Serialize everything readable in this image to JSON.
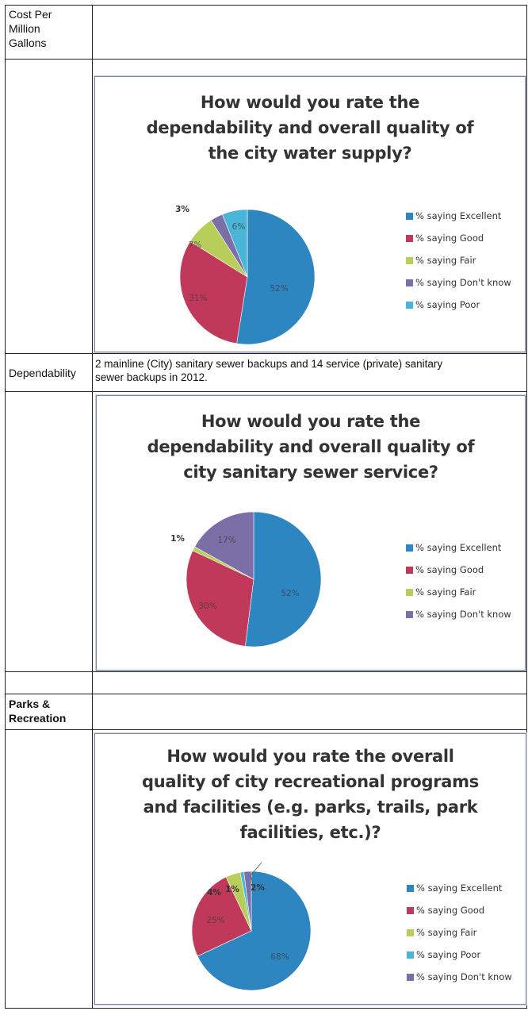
{
  "rows": {
    "cost_label": "Cost Per\nMillion\nGallons",
    "dependability_label": "Dependability",
    "dependability_text": "2 mainline (City) sanitary sewer backups and 14 service (private) sanitary sewer backups in 2012.",
    "parks_label": "Parks &\nRecreation"
  },
  "colors": {
    "Excellent": "#2e86c1",
    "Good": "#c0395b",
    "Fair": "#b7cf5a",
    "Dont_know": "#7c6fa8",
    "Poor": "#4ab5d6"
  },
  "chart_data": [
    {
      "type": "pie",
      "title": "How would you rate the dependability and overall quality of the city water supply?",
      "title_lines": [
        "How would you rate the",
        "dependability and overall quality of",
        "the city water supply?"
      ],
      "labels": [
        "% saying Excellent",
        "% saying Good",
        "% saying Fair",
        "% saying Don't know",
        "% saying Poor"
      ],
      "keys": [
        "Excellent",
        "Good",
        "Fair",
        "Dont_know",
        "Poor"
      ],
      "values": [
        52,
        31,
        7,
        3,
        6
      ],
      "value_labels": [
        "52%",
        "31%",
        "7%",
        "3%",
        "6%"
      ],
      "legend": "right"
    },
    {
      "type": "pie",
      "title": "How would you rate the dependability and overall quality of city sanitary sewer service?",
      "title_lines": [
        "How would you rate the",
        "dependability and overall quality of",
        "city sanitary sewer service?"
      ],
      "labels": [
        "% saying Excellent",
        "% saying Good",
        "% saying Fair",
        "% saying Don't know"
      ],
      "keys": [
        "Excellent",
        "Good",
        "Fair",
        "Dont_know"
      ],
      "values": [
        52,
        30,
        1,
        17
      ],
      "value_labels": [
        "52%",
        "30%",
        "1%",
        "17%"
      ],
      "legend": "right"
    },
    {
      "type": "pie",
      "title": "How would you rate the overall quality of city recreational programs and facilities (e.g. parks, trails, park facilities, etc.)?",
      "title_lines": [
        "How would you rate the overall",
        "quality of city recreational programs",
        "and facilities (e.g. parks, trails, park",
        "facilities, etc.)?"
      ],
      "labels": [
        "% saying Excellent",
        "% saying Good",
        "% saying Fair",
        "% saying Poor",
        "% saying Don't know"
      ],
      "keys": [
        "Excellent",
        "Good",
        "Fair",
        "Poor",
        "Dont_know"
      ],
      "values": [
        68,
        25,
        4,
        1,
        2
      ],
      "value_labels": [
        "68%",
        "25%",
        "4%",
        "1%",
        "2%"
      ],
      "legend": "right"
    }
  ]
}
